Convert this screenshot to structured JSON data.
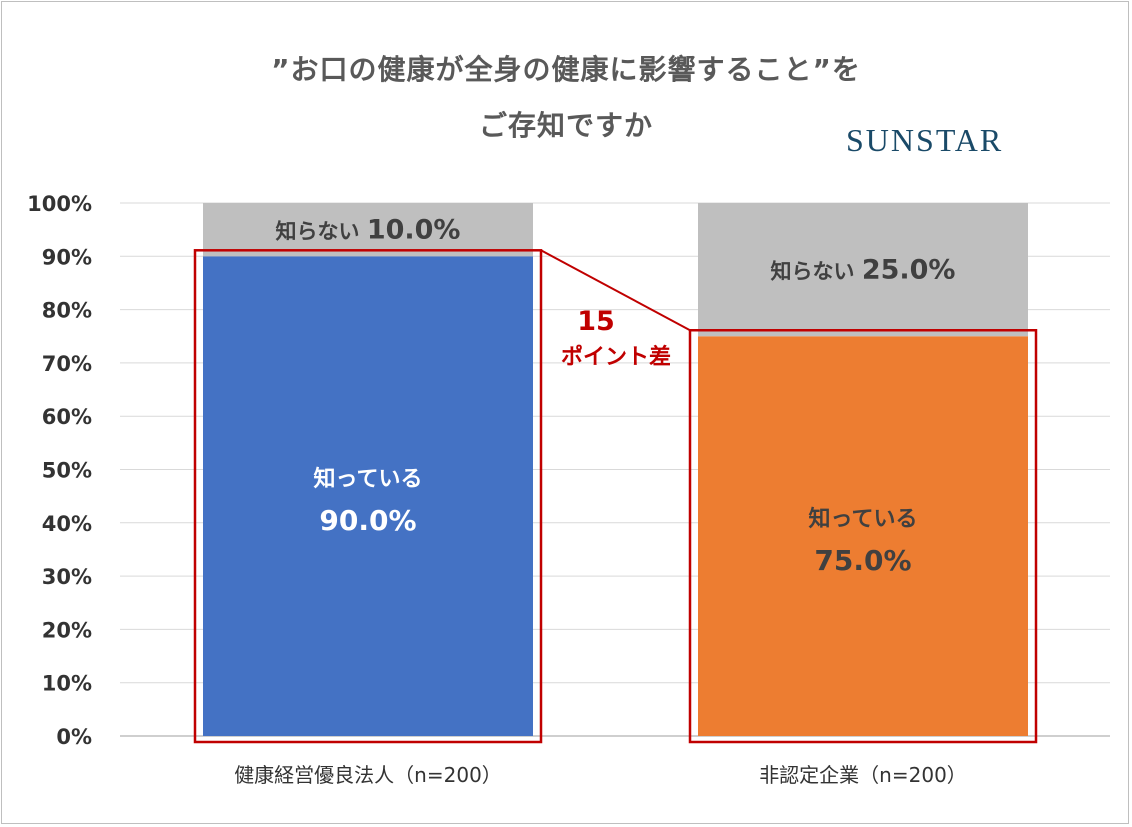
{
  "title_line1": "”お口の健康が全身の健康に影響すること”を",
  "title_line2": "ご存知ですか",
  "logo_text": "SUNSTAR",
  "colors": {
    "known_a": "#4472c4",
    "known_b": "#ed7d31",
    "unknown": "#bfbfbf",
    "highlight": "#c00000",
    "grid": "#d9d9d9"
  },
  "annotation": {
    "value": "15",
    "label": "ポイント差"
  },
  "chart_data": {
    "type": "bar",
    "stacked": true,
    "ylim": [
      0,
      100
    ],
    "y_ticks": [
      "0%",
      "10%",
      "20%",
      "30%",
      "40%",
      "50%",
      "60%",
      "70%",
      "80%",
      "90%",
      "100%"
    ],
    "grid": true,
    "categories": [
      "健康経営優良法人（n=200）",
      "非認定企業（n=200）"
    ],
    "series": [
      {
        "name": "知っている",
        "values": [
          90.0,
          75.0
        ],
        "labels": [
          "90.0%",
          "75.0%"
        ]
      },
      {
        "name": "知らない",
        "values": [
          10.0,
          25.0
        ],
        "labels": [
          "10.0%",
          "25.0%"
        ]
      }
    ]
  }
}
